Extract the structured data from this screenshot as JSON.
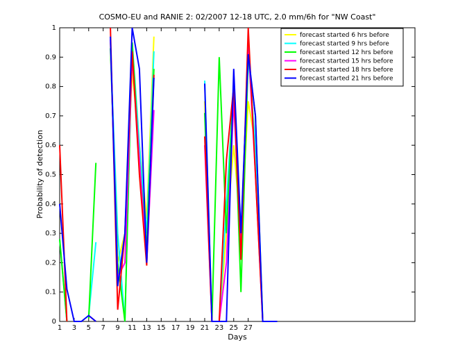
{
  "chart_data": {
    "type": "line",
    "title": "COSMO-EU and RANIE 2: 02/2007 12-18 UTC, 2.0 mm/6h for \"NW Coast\"",
    "xlabel": "Days",
    "ylabel": "Probability of detection",
    "x": [
      1,
      2,
      3,
      4,
      5,
      6,
      7,
      8,
      9,
      10,
      11,
      12,
      13,
      14,
      15,
      16,
      17,
      18,
      19,
      20,
      21,
      22,
      23,
      24,
      25,
      26,
      27,
      28,
      29,
      30,
      31
    ],
    "xlim": [
      1,
      50
    ],
    "xticks": [
      1,
      3,
      5,
      7,
      9,
      11,
      13,
      15,
      17,
      19,
      21,
      23,
      25,
      27
    ],
    "ylim": [
      0,
      1
    ],
    "yticks": [
      0,
      0.1,
      0.2,
      0.3,
      0.4,
      0.5,
      0.6,
      0.7,
      0.8,
      0.9,
      1
    ],
    "legend": "upper right",
    "series": [
      {
        "name": "forecast started 6 hrs before",
        "color": "#ffff00",
        "values": [
          null,
          null,
          null,
          null,
          null,
          null,
          null,
          0.95,
          0.2,
          0.3,
          0.85,
          0.6,
          0.35,
          0.97,
          null,
          null,
          null,
          null,
          null,
          null,
          0.75,
          0,
          0,
          0.3,
          0.6,
          0.3,
          0.75,
          0.6,
          0,
          0,
          0
        ]
      },
      {
        "name": "forecast started 9 hrs before",
        "color": "#00ffff",
        "values": [
          0.28,
          0,
          null,
          null,
          0.02,
          0.27,
          null,
          0.93,
          0.3,
          0,
          0.95,
          0.6,
          0.3,
          0.92,
          null,
          null,
          null,
          null,
          null,
          null,
          0.82,
          0,
          0,
          0.4,
          0.8,
          0.3,
          0.9,
          0.6,
          0,
          0,
          0
        ]
      },
      {
        "name": "forecast started 12 hrs before",
        "color": "#00ff00",
        "values": [
          0.28,
          0,
          null,
          null,
          0.01,
          0.54,
          null,
          0.93,
          0.2,
          0,
          0.95,
          0.55,
          0.25,
          0.86,
          null,
          null,
          null,
          null,
          null,
          null,
          0.71,
          0,
          0.9,
          0.3,
          0.82,
          0.1,
          0.9,
          0.7,
          0,
          0,
          0
        ]
      },
      {
        "name": "forecast started 15 hrs before",
        "color": "#ff00ff",
        "values": [
          null,
          null,
          null,
          null,
          null,
          null,
          null,
          0.96,
          0.15,
          0.2,
          0.9,
          0.55,
          0.2,
          0.72,
          null,
          null,
          null,
          null,
          null,
          null,
          0.6,
          0,
          0,
          0.2,
          0.75,
          0.25,
          0.95,
          0.5,
          0,
          0,
          0
        ]
      },
      {
        "name": "forecast started 18 hrs before",
        "color": "#ff0000",
        "values": [
          0.6,
          0,
          null,
          null,
          0.02,
          0,
          null,
          1,
          0.04,
          0.3,
          0.92,
          0.5,
          0.19,
          0.84,
          null,
          null,
          null,
          null,
          null,
          null,
          0.63,
          0,
          0,
          0.55,
          0.8,
          0.21,
          1,
          0.5,
          0,
          0,
          0
        ]
      },
      {
        "name": "forecast started 21 hrs before",
        "color": "#0000ff",
        "values": [
          0.4,
          0.11,
          0,
          0,
          0.02,
          0,
          null,
          0.97,
          0.12,
          0.3,
          1,
          0.86,
          0.2,
          0.83,
          null,
          null,
          null,
          null,
          null,
          null,
          0.81,
          0,
          0,
          0,
          0.86,
          0.3,
          0.91,
          0.7,
          0,
          0,
          0
        ]
      }
    ]
  }
}
